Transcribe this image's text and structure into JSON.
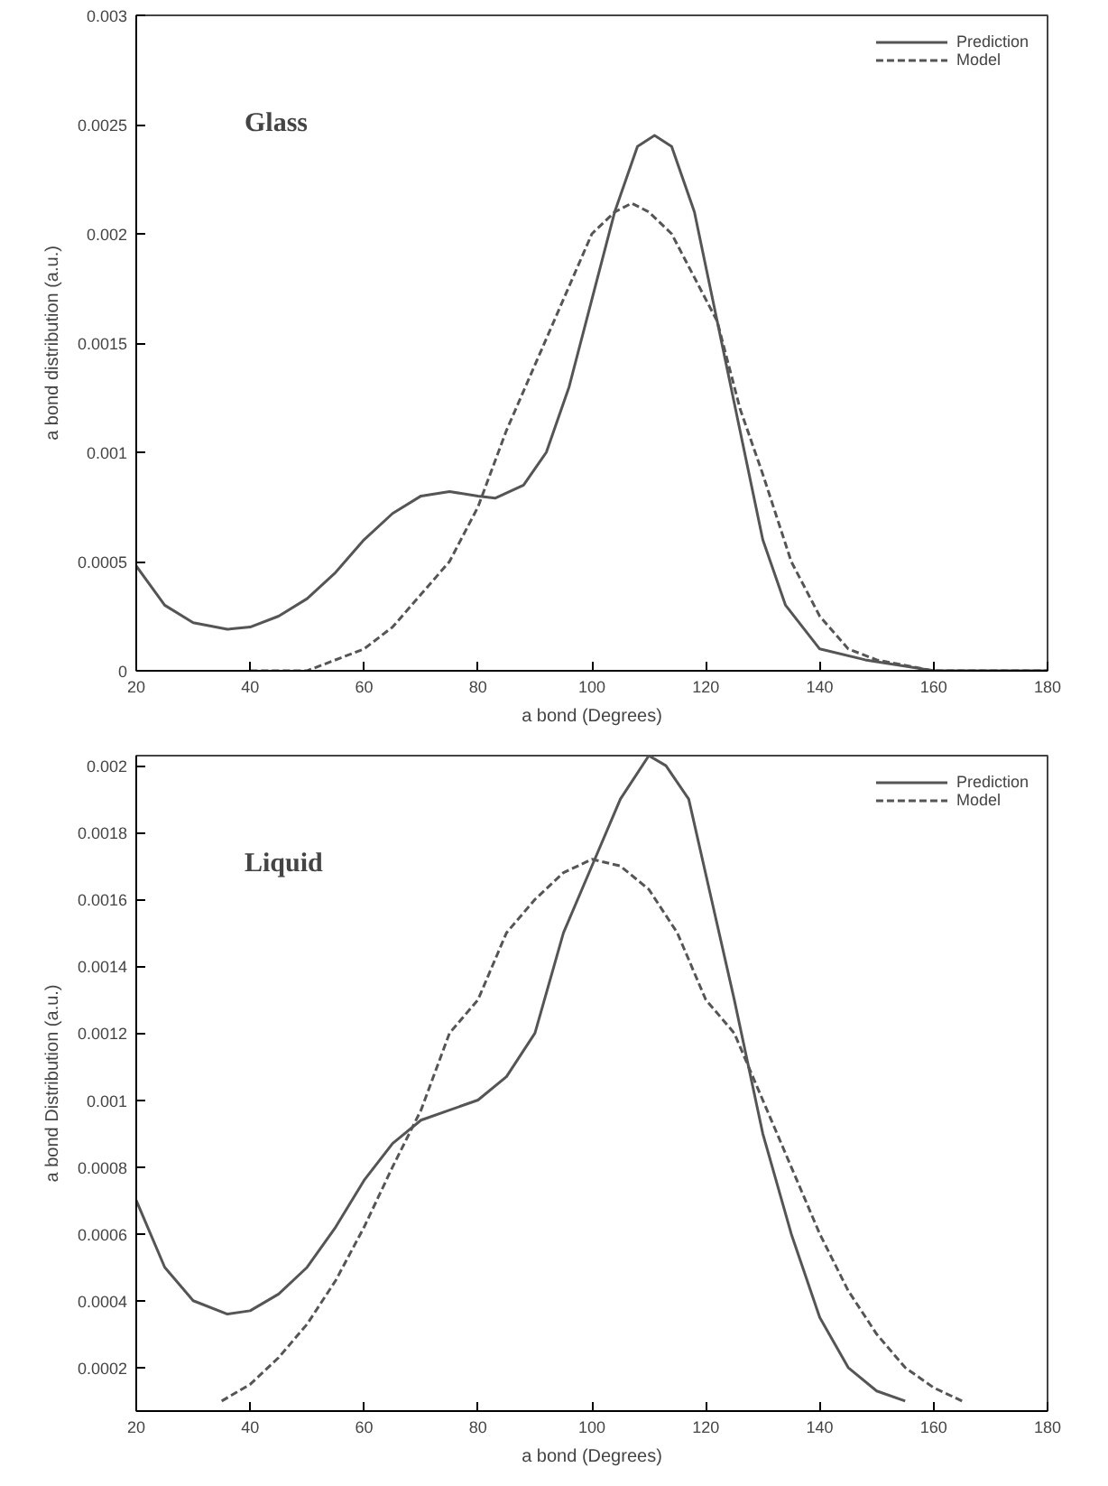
{
  "chart_data": [
    {
      "type": "line",
      "annotations": [
        "Glass"
      ],
      "xlabel": "a bond (Degrees)",
      "ylabel": "a bond distribution (a.u.)",
      "xlim": [
        20,
        180
      ],
      "ylim": [
        0,
        0.003
      ],
      "xticks": [
        20,
        40,
        60,
        80,
        100,
        120,
        140,
        160,
        180
      ],
      "yticks": [
        0,
        0.0005,
        0.001,
        0.0015,
        0.002,
        0.0025,
        0.003
      ],
      "grid": false,
      "legend": "top right",
      "marker": "none",
      "series": [
        {
          "name": "Prediction",
          "color": "#555555",
          "line_style": "solid",
          "x": [
            20,
            25,
            30,
            36,
            40,
            45,
            50,
            55,
            60,
            65,
            70,
            75,
            80,
            83,
            88,
            92,
            96,
            100,
            104,
            108,
            111,
            114,
            118,
            122,
            126,
            130,
            134,
            140,
            148,
            160,
            180
          ],
          "values": [
            0.00048,
            0.0003,
            0.00022,
            0.00019,
            0.0002,
            0.00025,
            0.00033,
            0.00045,
            0.0006,
            0.00072,
            0.0008,
            0.00082,
            0.0008,
            0.00079,
            0.00085,
            0.001,
            0.0013,
            0.0017,
            0.0021,
            0.0024,
            0.00245,
            0.0024,
            0.0021,
            0.0016,
            0.0011,
            0.0006,
            0.0003,
            0.0001,
            5e-05,
            0,
            0
          ]
        },
        {
          "name": "Model",
          "color": "#555555",
          "line_style": "dashed",
          "x": [
            40,
            50,
            60,
            65,
            70,
            75,
            80,
            85,
            90,
            95,
            100,
            104,
            107,
            110,
            114,
            118,
            122,
            126,
            130,
            135,
            140,
            145,
            150,
            160,
            170,
            180
          ],
          "values": [
            0,
            0,
            0.0001,
            0.0002,
            0.00035,
            0.0005,
            0.00075,
            0.0011,
            0.0014,
            0.0017,
            0.002,
            0.0021,
            0.00214,
            0.0021,
            0.002,
            0.0018,
            0.0016,
            0.0012,
            0.0009,
            0.0005,
            0.00025,
            0.0001,
            5e-05,
            0,
            0,
            0
          ]
        }
      ]
    },
    {
      "type": "line",
      "annotations": [
        "Liquid"
      ],
      "xlabel": "a bond (Degrees)",
      "ylabel": "a bond Distribution (a.u.)",
      "xlim": [
        20,
        180
      ],
      "ylim": [
        7e-05,
        0.00203
      ],
      "xticks": [
        20,
        40,
        60,
        80,
        100,
        120,
        140,
        160,
        180
      ],
      "yticks": [
        0.0002,
        0.0004,
        0.0006,
        0.0008,
        0.001,
        0.0012,
        0.0014,
        0.0016,
        0.0018,
        0.002
      ],
      "grid": false,
      "legend": "top right",
      "marker": "none",
      "series": [
        {
          "name": "Prediction",
          "color": "#555555",
          "line_style": "solid",
          "x": [
            20,
            25,
            30,
            36,
            40,
            45,
            50,
            55,
            60,
            65,
            70,
            75,
            80,
            85,
            90,
            95,
            100,
            105,
            110,
            113,
            117,
            121,
            125,
            130,
            135,
            140,
            145,
            150,
            155
          ],
          "values": [
            0.0007,
            0.0005,
            0.0004,
            0.00036,
            0.00037,
            0.00042,
            0.0005,
            0.00062,
            0.00076,
            0.00087,
            0.00094,
            0.00097,
            0.001,
            0.00107,
            0.0012,
            0.0015,
            0.0017,
            0.0019,
            0.00203,
            0.002,
            0.0019,
            0.0016,
            0.0013,
            0.0009,
            0.0006,
            0.00035,
            0.0002,
            0.00013,
            0.0001
          ]
        },
        {
          "name": "Model",
          "color": "#555555",
          "line_style": "dashed",
          "x": [
            35,
            40,
            45,
            50,
            55,
            60,
            65,
            70,
            75,
            80,
            85,
            90,
            95,
            100,
            105,
            110,
            115,
            120,
            125,
            130,
            135,
            140,
            145,
            150,
            155,
            160,
            165
          ],
          "values": [
            0.0001,
            0.00015,
            0.00023,
            0.00033,
            0.00046,
            0.00062,
            0.0008,
            0.00097,
            0.0012,
            0.0013,
            0.0015,
            0.0016,
            0.00168,
            0.00172,
            0.0017,
            0.00163,
            0.0015,
            0.0013,
            0.0012,
            0.001,
            0.0008,
            0.0006,
            0.00043,
            0.0003,
            0.0002,
            0.00014,
            0.0001
          ]
        }
      ]
    }
  ]
}
